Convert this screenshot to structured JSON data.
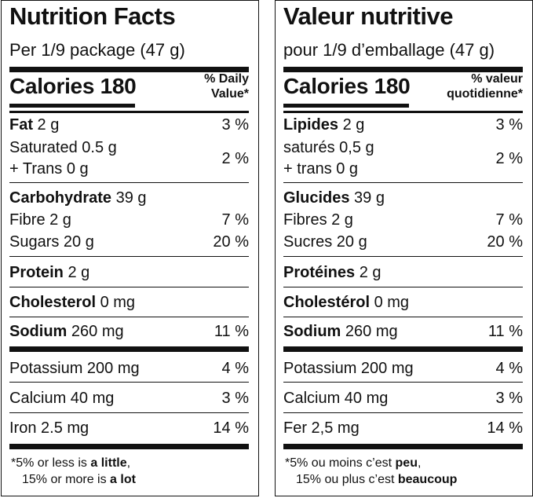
{
  "en": {
    "title": "Nutrition Facts",
    "serving": "Per 1/9 package (47 g)",
    "calories": "Calories 180",
    "dv_line1": "% Daily",
    "dv_line2": "Value*",
    "fat_name": "Fat",
    "fat_amt": " 2 g",
    "fat_dv": "3 %",
    "sat": "Saturated 0.5 g",
    "trans": "+ Trans 0 g",
    "sat_dv": "2 %",
    "carb_name": "Carbohydrate",
    "carb_amt": " 39 g",
    "fibre": "Fibre 2 g",
    "fibre_dv": "7 %",
    "sugars": "Sugars 20 g",
    "sugars_dv": "20 %",
    "protein_name": "Protein",
    "protein_amt": " 2 g",
    "chol_name": "Cholesterol",
    "chol_amt": " 0 mg",
    "sodium_name": "Sodium",
    "sodium_amt": " 260 mg",
    "sodium_dv": "11 %",
    "potassium": "Potassium 200 mg",
    "potassium_dv": "4 %",
    "calcium": "Calcium 40 mg",
    "calcium_dv": "3 %",
    "iron": "Iron 2.5 mg",
    "iron_dv": "14 %",
    "foot1_a": "*5% or less is ",
    "foot1_b": "a little",
    "foot1_c": ",",
    "foot2_a": "15% or more is ",
    "foot2_b": "a lot"
  },
  "fr": {
    "title": "Valeur nutritive",
    "serving": "pour 1/9 d’emballage (47 g)",
    "calories": "Calories 180",
    "dv_line1": "% valeur",
    "dv_line2": "quotidienne*",
    "fat_name": "Lipides",
    "fat_amt": " 2 g",
    "fat_dv": "3 %",
    "sat": "saturés 0,5 g",
    "trans": "+ trans 0 g",
    "sat_dv": "2 %",
    "carb_name": "Glucides",
    "carb_amt": " 39 g",
    "fibre": "Fibres 2 g",
    "fibre_dv": "7 %",
    "sugars": "Sucres 20 g",
    "sugars_dv": "20 %",
    "protein_name": "Protéines",
    "protein_amt": " 2 g",
    "chol_name": "Cholestérol",
    "chol_amt": " 0 mg",
    "sodium_name": "Sodium",
    "sodium_amt": " 260 mg",
    "sodium_dv": "11 %",
    "potassium": "Potassium 200 mg",
    "potassium_dv": "4 %",
    "calcium": "Calcium 40 mg",
    "calcium_dv": "3 %",
    "iron": "Fer 2,5 mg",
    "iron_dv": "14 %",
    "foot1_a": "*5% ou moins c’est ",
    "foot1_b": "peu",
    "foot1_c": ",",
    "foot2_a": "15% ou plus c’est ",
    "foot2_b": "beaucoup"
  }
}
